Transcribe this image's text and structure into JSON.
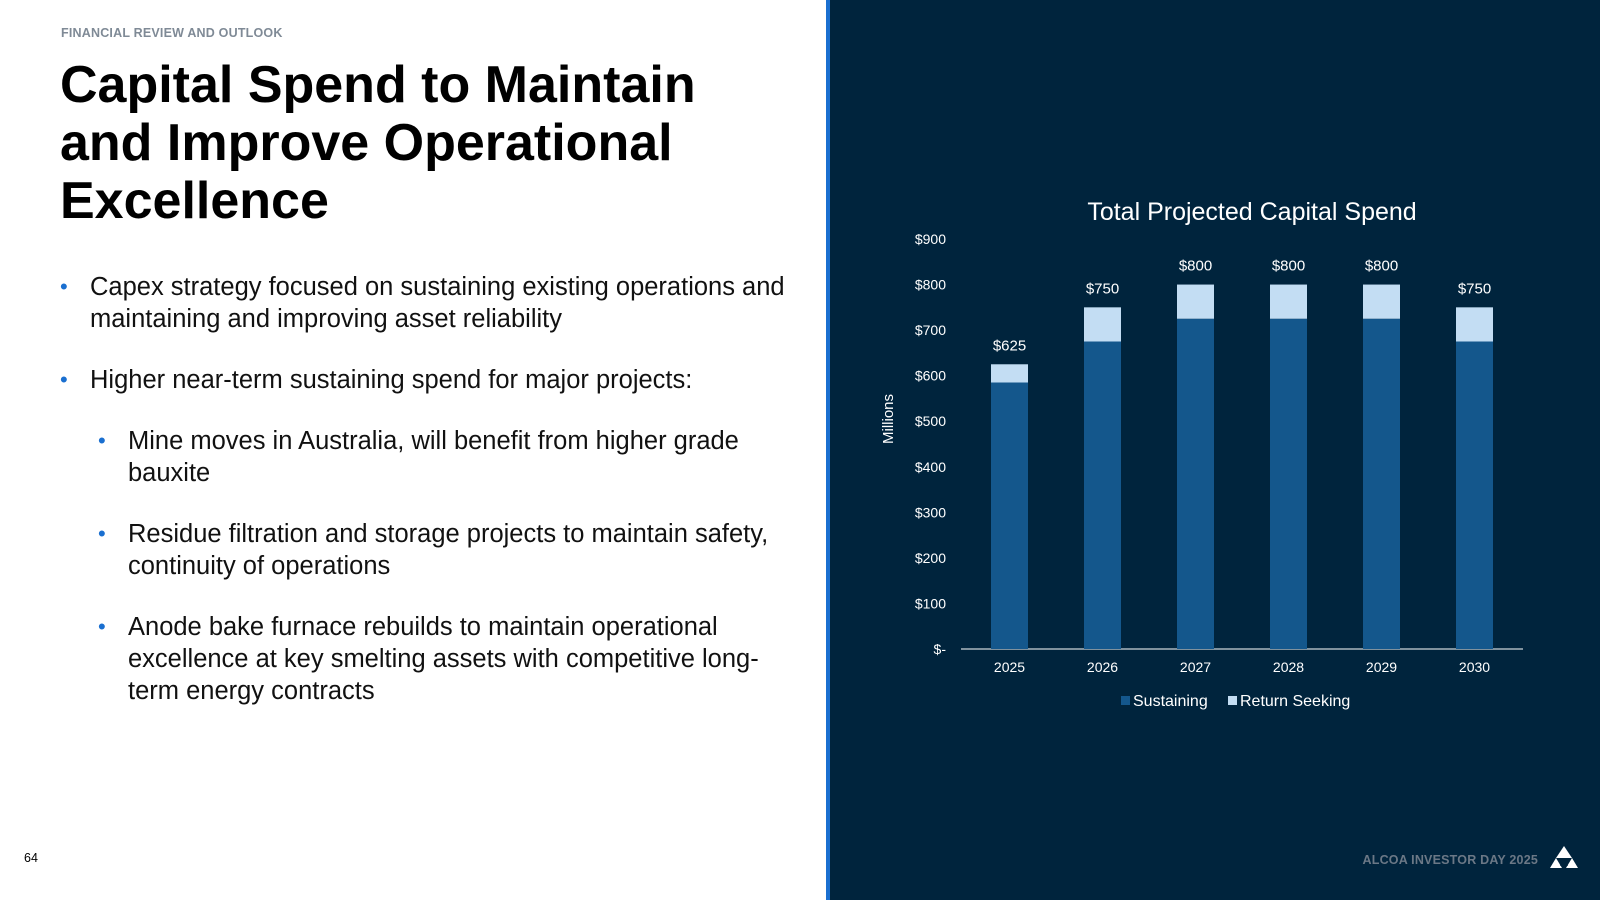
{
  "header": {
    "section_label": "FINANCIAL REVIEW AND OUTLOOK"
  },
  "title": "Capital Spend to Maintain and Improve Operational Excellence",
  "bullets": [
    {
      "level": 1,
      "text": "Capex strategy focused on sustaining existing operations and maintaining and improving asset reliability"
    },
    {
      "level": 1,
      "text": "Higher near-term sustaining spend for major projects:"
    },
    {
      "level": 2,
      "text": "Mine moves in Australia, will benefit from higher grade bauxite"
    },
    {
      "level": 2,
      "text": "Residue filtration and storage projects to maintain safety, continuity of operations"
    },
    {
      "level": 2,
      "text": "Anode bake furnace rebuilds to maintain operational excellence at key smelting assets with competitive long-term energy contracts"
    }
  ],
  "bullet_glyph": "•",
  "footer": {
    "page_number": "64",
    "event": "ALCOA INVESTOR DAY 2025",
    "logo_icon": "alcoa-logo-icon"
  },
  "colors": {
    "panel_background": "#00243d",
    "accent_divider": "#1a6fd0",
    "sustaining": "#14578c",
    "return_seeking": "#c3ddf3"
  },
  "chart_data": {
    "type": "bar",
    "stacked": true,
    "title": "Total Projected Capital Spend",
    "xlabel": "",
    "ylabel": "Millions",
    "categories": [
      "2025",
      "2026",
      "2027",
      "2028",
      "2029",
      "2030"
    ],
    "series": [
      {
        "name": "Sustaining",
        "values": [
          585,
          675,
          725,
          725,
          725,
          675
        ]
      },
      {
        "name": "Return Seeking",
        "values": [
          40,
          75,
          75,
          75,
          75,
          75
        ]
      }
    ],
    "totals": [
      625,
      750,
      800,
      800,
      800,
      750
    ],
    "total_labels": [
      "$625",
      "$750",
      "$800",
      "$800",
      "$800",
      "$750"
    ],
    "ylim": [
      0,
      900
    ],
    "ytick_values": [
      0,
      100,
      200,
      300,
      400,
      500,
      600,
      700,
      800,
      900
    ],
    "ytick_labels": [
      "$-",
      "$100",
      "$200",
      "$300",
      "$400",
      "$500",
      "$600",
      "$700",
      "$800",
      "$900"
    ],
    "grid": false,
    "legend_position": "bottom"
  }
}
